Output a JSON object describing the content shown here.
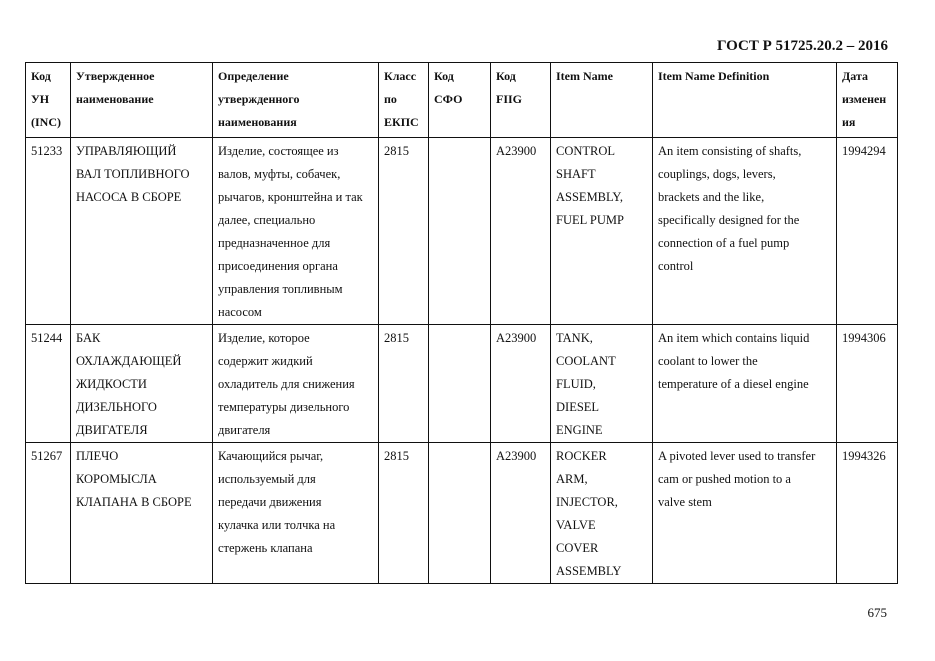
{
  "header": {
    "standard": "ГОСТ Р 51725.20.2 – 2016"
  },
  "page_number": "675",
  "table": {
    "columns": [
      [
        "Код",
        "УН",
        "(INC)"
      ],
      [
        "Утвержденное",
        "наименование"
      ],
      [
        "Определение",
        "утвержденного",
        "наименования"
      ],
      [
        "Класс",
        "по",
        "ЕКПС"
      ],
      [
        "Код",
        "СФО"
      ],
      [
        "Код",
        "FIIG"
      ],
      [
        "Item Name"
      ],
      [
        "Item Name Definition"
      ],
      [
        "Дата",
        "изменен",
        "ия"
      ]
    ],
    "rows": [
      [
        [
          "51233"
        ],
        [
          "УПРАВЛЯЮЩИЙ",
          "ВАЛ ТОПЛИВНОГО",
          "НАСОСА В СБОРЕ"
        ],
        [
          "Изделие, состоящее из",
          "валов, муфты, собачек,",
          "рычагов, кронштейна и так",
          "далее, специально",
          "предназначенное для",
          "присоединения органа",
          "управления топливным",
          "насосом"
        ],
        [
          "2815"
        ],
        [],
        [
          "A23900"
        ],
        [
          "CONTROL",
          "SHAFT",
          "ASSEMBLY,",
          "FUEL PUMP"
        ],
        [
          "An item consisting of shafts,",
          "couplings, dogs, levers,",
          "brackets and the like,",
          "specifically designed for the",
          "connection of a fuel pump",
          "control"
        ],
        [
          "1994294"
        ]
      ],
      [
        [
          "51244"
        ],
        [
          "БАК",
          "ОХЛАЖДАЮЩЕЙ",
          "ЖИДКОСТИ",
          "ДИЗЕЛЬНОГО",
          "ДВИГАТЕЛЯ"
        ],
        [
          "Изделие, которое",
          "содержит жидкий",
          "охладитель для снижения",
          "температуры дизельного",
          "двигателя"
        ],
        [
          "2815"
        ],
        [],
        [
          "A23900"
        ],
        [
          "TANK,",
          "COOLANT",
          "FLUID,",
          "DIESEL",
          "ENGINE"
        ],
        [
          "An item which contains liquid",
          "coolant to lower the",
          "temperature of a diesel engine"
        ],
        [
          "1994306"
        ]
      ],
      [
        [
          "51267"
        ],
        [
          "ПЛЕЧО",
          "КОРОМЫСЛА",
          "КЛАПАНА В СБОРЕ"
        ],
        [
          "Качающийся рычаг,",
          "используемый для",
          "передачи движения",
          "кулачка или толчка на",
          "стержень клапана"
        ],
        [
          "2815"
        ],
        [],
        [
          "A23900"
        ],
        [
          "ROCKER",
          "ARM,",
          "INJECTOR,",
          "VALVE",
          "COVER",
          "ASSEMBLY"
        ],
        [
          "A pivoted lever used to transfer",
          "cam or pushed motion to a",
          "valve stem"
        ],
        [
          "1994326"
        ]
      ]
    ]
  }
}
